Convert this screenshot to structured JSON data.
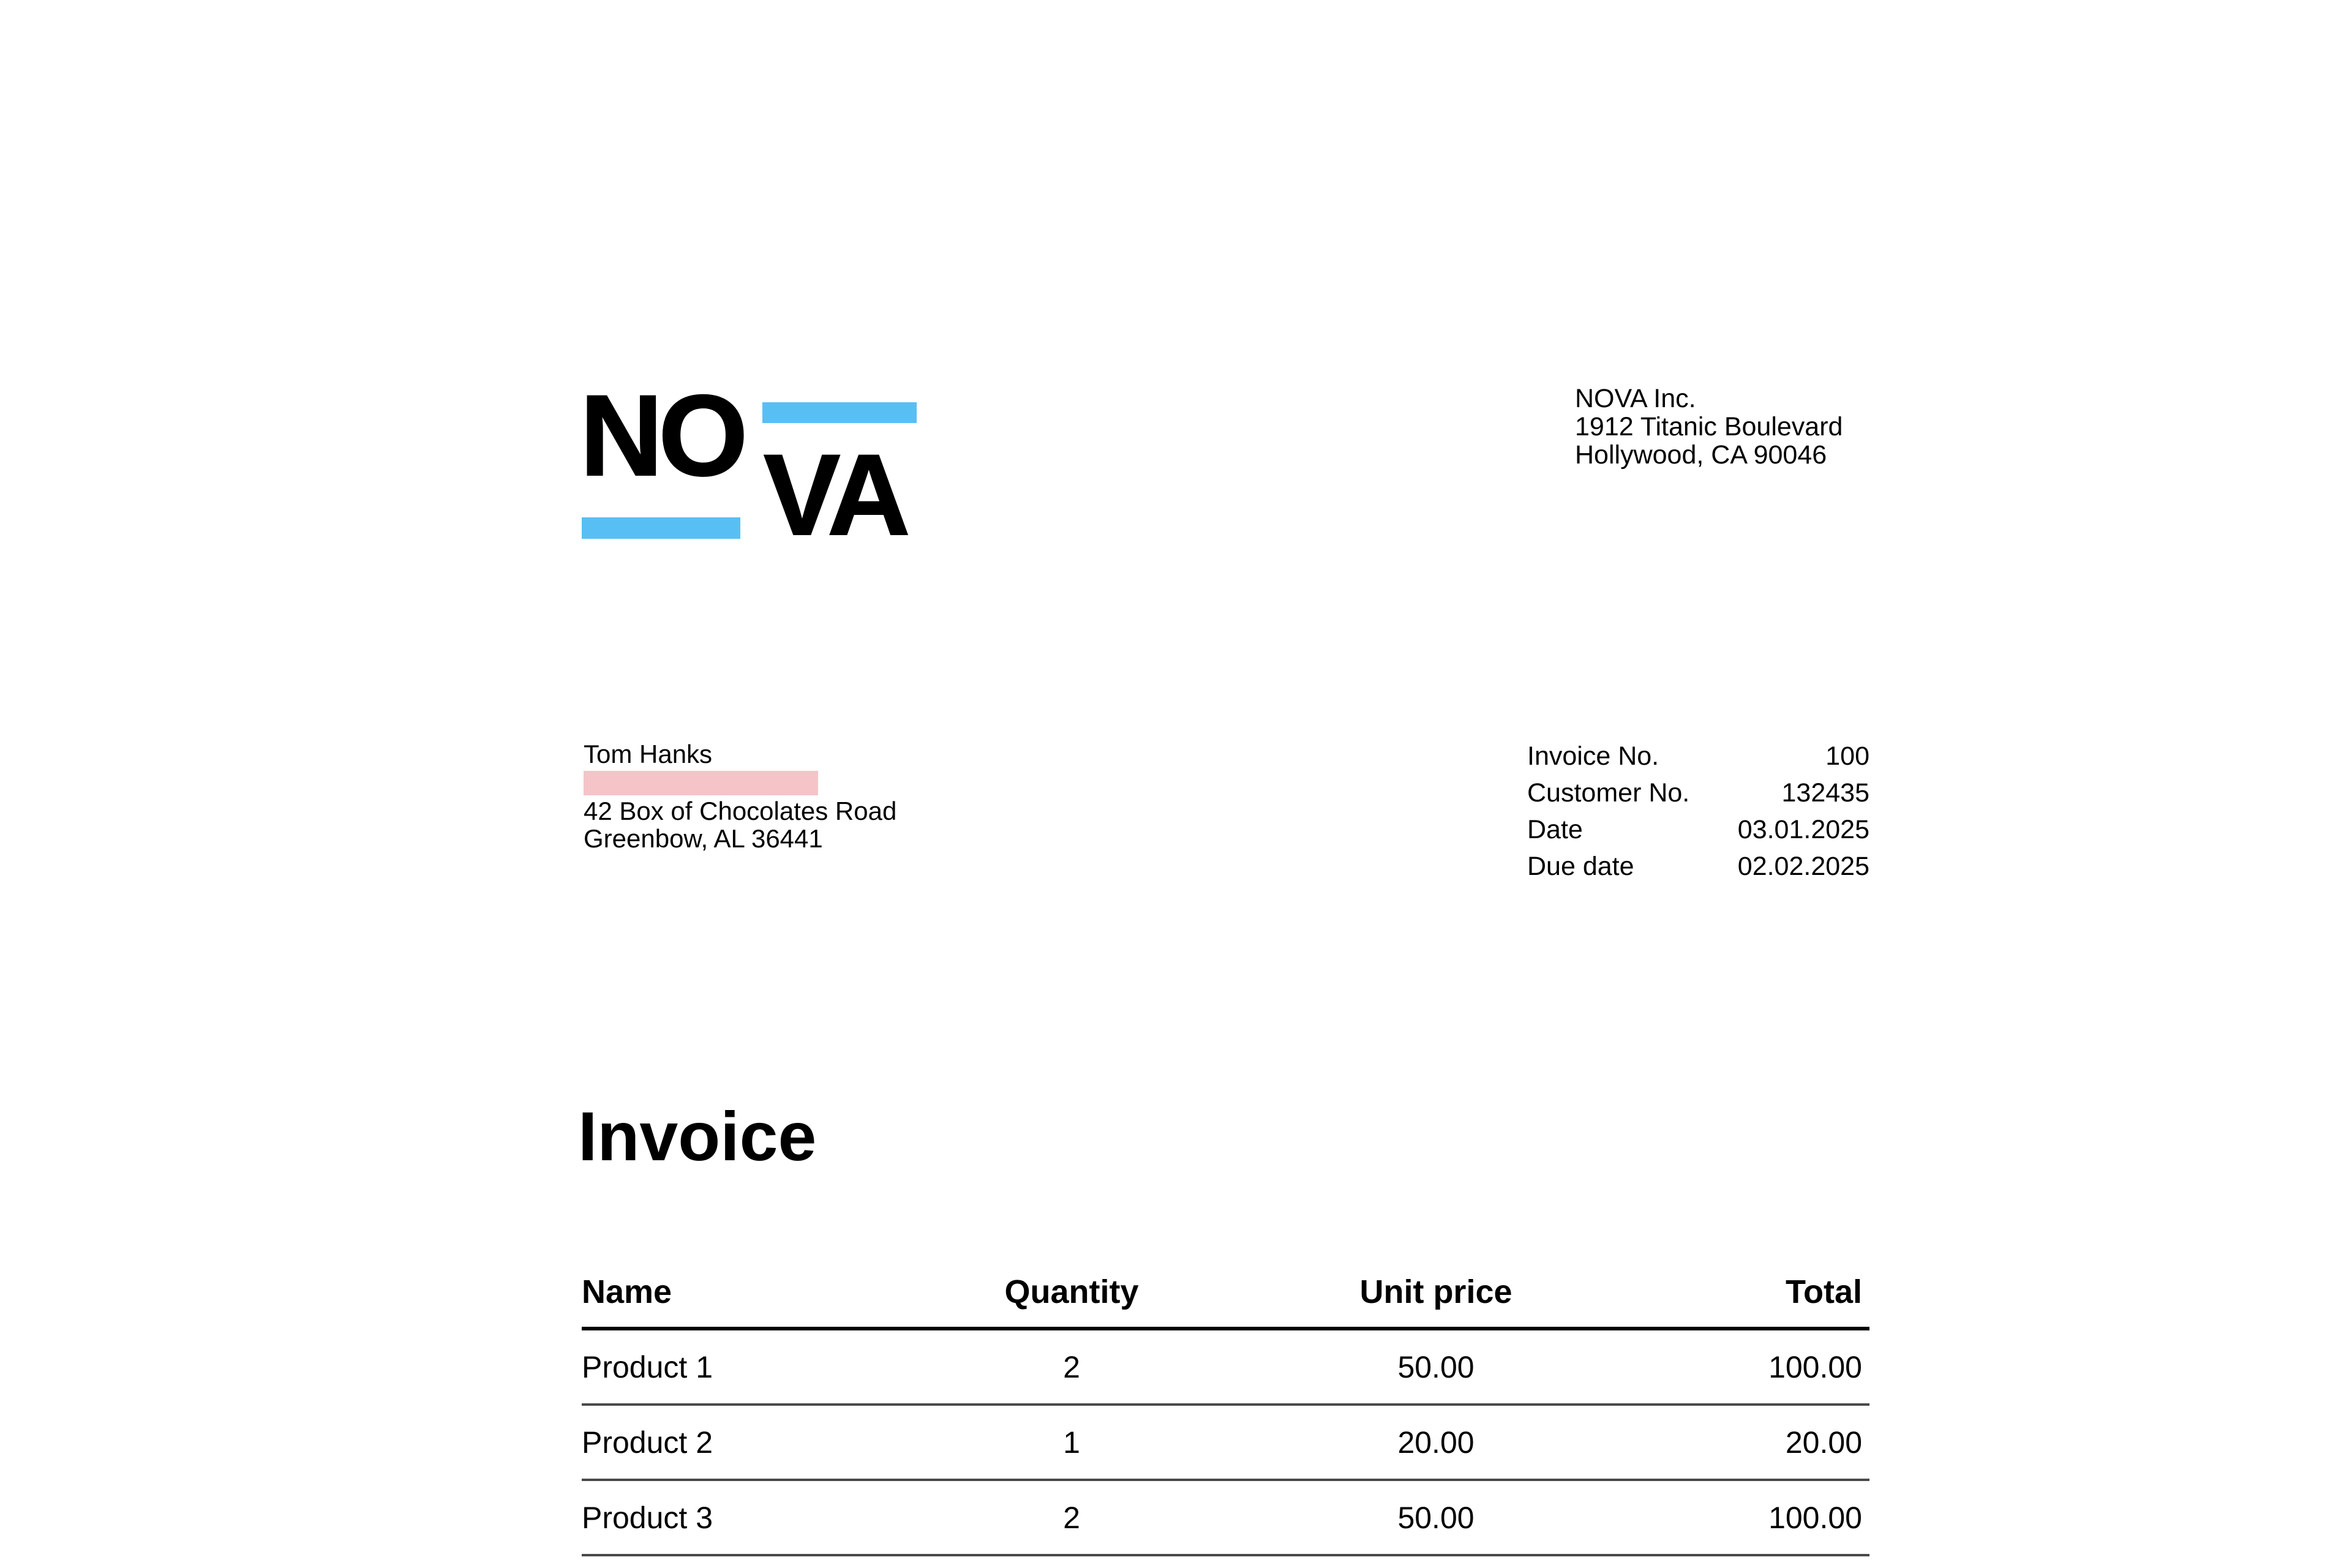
{
  "logo": {
    "line1": "NO",
    "line2": "VA",
    "bar_color": "#58BFF5"
  },
  "company": {
    "name": "NOVA Inc.",
    "address_line1": "1912 Titanic Boulevard",
    "address_line2": "Hollywood, CA 90046"
  },
  "customer": {
    "name": "Tom Hanks",
    "redacted_line_color": "#F4C4C8",
    "address_line1": "42 Box of Chocolates Road",
    "address_line2": "Greenbow, AL 36441"
  },
  "meta": {
    "rows": [
      {
        "label": "Invoice No.",
        "value": "100"
      },
      {
        "label": "Customer No.",
        "value": "132435"
      },
      {
        "label": "Date",
        "value": "03.01.2025"
      },
      {
        "label": "Due date",
        "value": "02.02.2025"
      }
    ]
  },
  "title": "Invoice",
  "table": {
    "columns": [
      "Name",
      "Quantity",
      "Unit price",
      "Total"
    ],
    "rows": [
      [
        "Product 1",
        "2",
        "50.00",
        "100.00"
      ],
      [
        "Product 2",
        "1",
        "20.00",
        "20.00"
      ],
      [
        "Product 3",
        "2",
        "50.00",
        "100.00"
      ]
    ]
  },
  "colors": {
    "text": "#000000",
    "header_rule": "#000000",
    "row_rule": "#4a4a4a"
  }
}
